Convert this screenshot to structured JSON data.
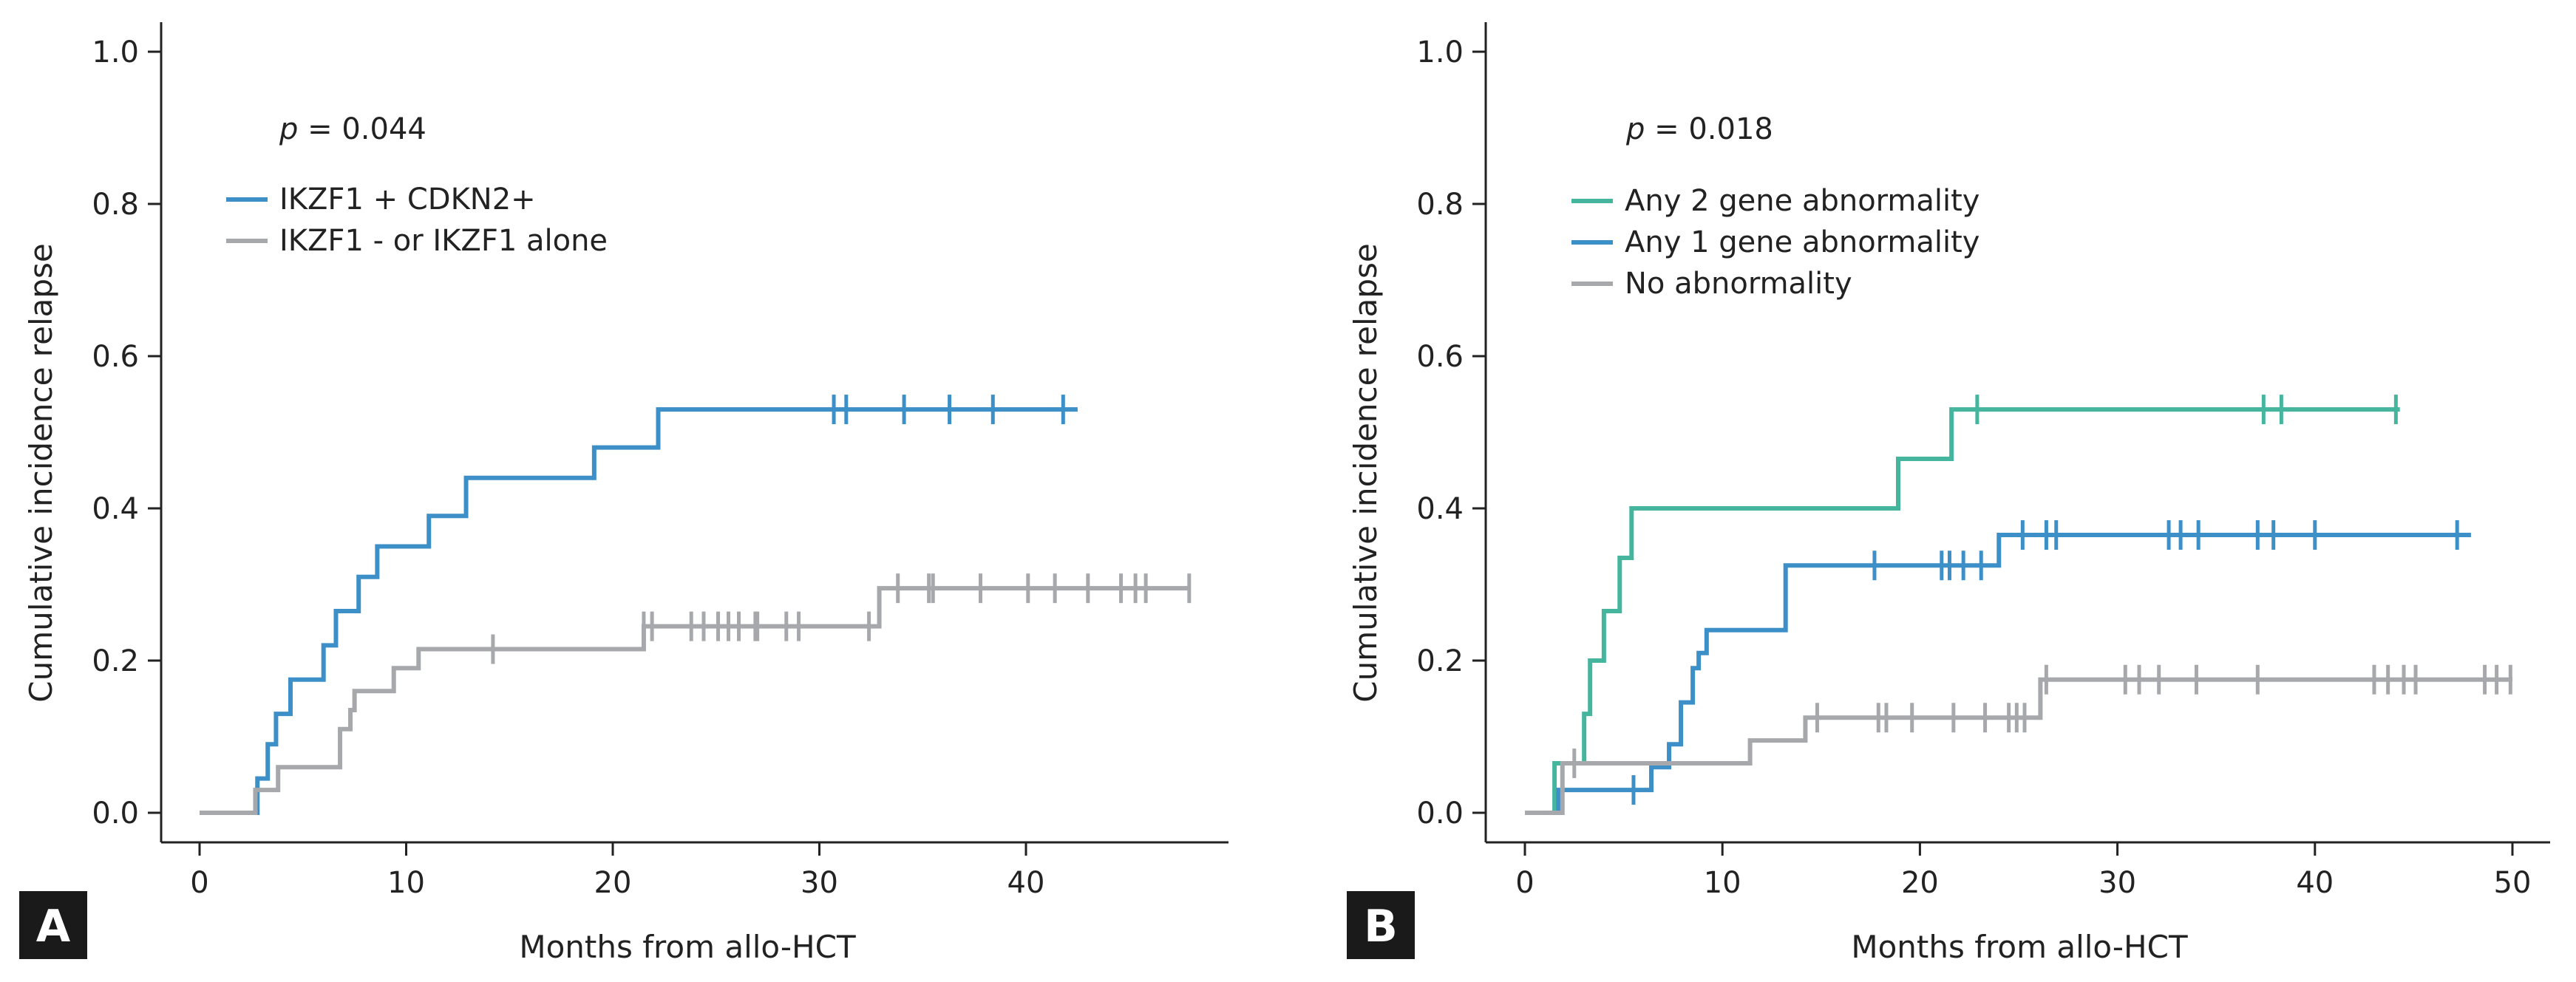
{
  "chart_data": [
    {
      "type": "line",
      "panel": "A",
      "p_value": {
        "prefix": "p",
        "text": " = 0.044"
      },
      "xlabel": "Months from allo-HCT",
      "ylabel": "Cumulative incidence relapse",
      "xlim": [
        0,
        48
      ],
      "ylim": [
        0,
        1.0
      ],
      "xticks": [
        0,
        10,
        20,
        30,
        40
      ],
      "yticks": [
        "0.0",
        "0.2",
        "0.4",
        "0.6",
        "0.8",
        "1.0"
      ],
      "legend_position": "top-left",
      "series": [
        {
          "name": "IKZF1 + CDKN2+",
          "color": "#3d8fc7",
          "steps": [
            [
              0,
              0
            ],
            [
              2.8,
              0.045
            ],
            [
              3.3,
              0.09
            ],
            [
              3.7,
              0.13
            ],
            [
              4.4,
              0.175
            ],
            [
              6.0,
              0.22
            ],
            [
              6.6,
              0.265
            ],
            [
              7.7,
              0.31
            ],
            [
              8.6,
              0.35
            ],
            [
              11.1,
              0.39
            ],
            [
              12.9,
              0.44
            ],
            [
              19.1,
              0.48
            ],
            [
              22.2,
              0.53
            ],
            [
              42.5,
              0.53
            ]
          ],
          "censor_x": [
            30.7,
            31.3,
            34.1,
            36.3,
            38.4,
            41.8
          ]
        },
        {
          "name": "IKZF1 - or IKZF1 alone",
          "color": "#a6a8ab",
          "steps": [
            [
              0,
              0
            ],
            [
              2.7,
              0.03
            ],
            [
              3.8,
              0.06
            ],
            [
              4.9,
              0.06
            ],
            [
              6.8,
              0.11
            ],
            [
              7.3,
              0.135
            ],
            [
              7.5,
              0.16
            ],
            [
              9.4,
              0.19
            ],
            [
              10.6,
              0.215
            ],
            [
              21.5,
              0.245
            ],
            [
              32.9,
              0.295
            ],
            [
              47.9,
              0.295
            ]
          ],
          "censor_x": [
            14.2,
            21.5,
            21.9,
            23.8,
            24.4,
            25.1,
            25.6,
            26.1,
            26.9,
            27.0,
            28.4,
            29.0,
            32.4,
            33.8,
            35.3,
            35.5,
            37.8,
            40.1,
            41.4,
            43.0,
            44.6,
            45.3,
            45.8,
            47.9
          ]
        }
      ]
    },
    {
      "type": "line",
      "panel": "B",
      "p_value": {
        "prefix": "p",
        "text": " = 0.018"
      },
      "xlabel": "Months from allo-HCT",
      "ylabel": "Cumulative incidence relapse",
      "xlim": [
        0,
        50
      ],
      "ylim": [
        0,
        1.0
      ],
      "xticks": [
        0,
        10,
        20,
        30,
        40,
        50
      ],
      "yticks": [
        "0.0",
        "0.2",
        "0.4",
        "0.6",
        "0.8",
        "1.0"
      ],
      "legend_position": "top-left",
      "series": [
        {
          "name": "Any 2 gene abnormality",
          "color": "#45b59e",
          "steps": [
            [
              0,
              0
            ],
            [
              1.5,
              0.065
            ],
            [
              3.0,
              0.13
            ],
            [
              3.3,
              0.2
            ],
            [
              4.0,
              0.265
            ],
            [
              4.8,
              0.335
            ],
            [
              5.4,
              0.4
            ],
            [
              18.9,
              0.465
            ],
            [
              21.6,
              0.53
            ],
            [
              44.3,
              0.53
            ]
          ],
          "censor_x": [
            22.9,
            37.4,
            38.3,
            44.1
          ]
        },
        {
          "name": "Any 1 gene abnormality",
          "color": "#3d8fc7",
          "steps": [
            [
              0,
              0
            ],
            [
              1.7,
              0.03
            ],
            [
              6.4,
              0.06
            ],
            [
              7.3,
              0.09
            ],
            [
              7.9,
              0.145
            ],
            [
              8.5,
              0.19
            ],
            [
              8.8,
              0.21
            ],
            [
              9.2,
              0.24
            ],
            [
              11.8,
              0.24
            ],
            [
              13.2,
              0.325
            ],
            [
              24.0,
              0.365
            ],
            [
              47.9,
              0.365
            ]
          ],
          "censor_x": [
            5.5,
            17.7,
            21.1,
            21.5,
            22.2,
            23.1,
            25.2,
            26.4,
            26.9,
            32.6,
            33.2,
            34.1,
            37.1,
            37.9,
            40.0,
            47.2
          ]
        },
        {
          "name": "No abnormality",
          "color": "#a6a8ab",
          "steps": [
            [
              0,
              0
            ],
            [
              1.9,
              0.065
            ],
            [
              11.4,
              0.095
            ],
            [
              14.2,
              0.125
            ],
            [
              26.1,
              0.175
            ],
            [
              50.0,
              0.175
            ]
          ],
          "censor_x": [
            2.5,
            14.8,
            17.9,
            18.3,
            19.6,
            21.7,
            23.3,
            24.5,
            24.9,
            25.3,
            26.4,
            30.4,
            31.1,
            32.1,
            34.0,
            37.1,
            43.0,
            43.7,
            44.5,
            45.1,
            48.6,
            49.2,
            49.9
          ]
        }
      ]
    }
  ]
}
